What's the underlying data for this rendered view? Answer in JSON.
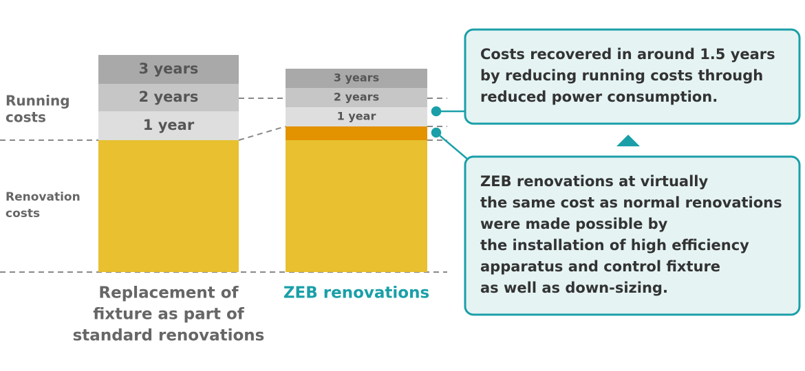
{
  "row_labels": [
    [
      "Running",
      "costs"
    ],
    [
      "Renovation",
      "costs"
    ]
  ],
  "bars": [
    {
      "label": [
        "Replacement of",
        "fixture as part of",
        "standard renovations"
      ],
      "segments": [
        "1 year",
        "2 years",
        "3 years"
      ]
    },
    {
      "label": [
        "ZEB renovations"
      ],
      "segments": [
        "1 year",
        "2 years",
        "3 years"
      ]
    }
  ],
  "callouts": [
    [
      "Costs recovered in around 1.5 years",
      "by reducing running costs through",
      "reduced power consumption."
    ],
    [
      "ZEB renovations at virtually",
      "the same cost as normal renovations",
      "were made possible by",
      "the installation of high efficiency",
      "apparatus and control fixture",
      "as well as down-sizing."
    ]
  ]
}
